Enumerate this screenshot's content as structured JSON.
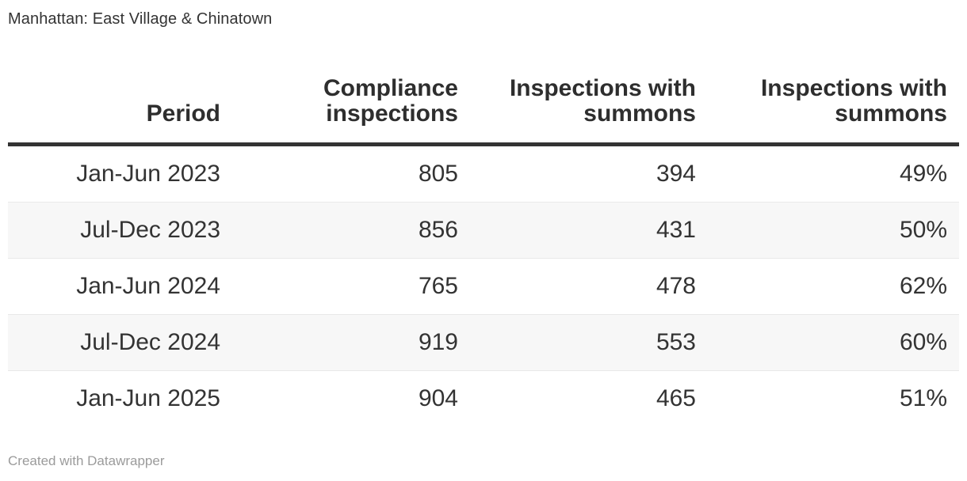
{
  "title": "Manhattan: East Village & Chinatown",
  "chart_data": {
    "type": "table",
    "title": "Manhattan: East Village & Chinatown",
    "columns": [
      "Period",
      "Compliance inspections",
      "Inspections with summons",
      "Inspections with summons"
    ],
    "rows": [
      [
        "Jan-Jun 2023",
        "805",
        "394",
        "49%"
      ],
      [
        "Jul-Dec 2023",
        "856",
        "431",
        "50%"
      ],
      [
        "Jan-Jun 2024",
        "765",
        "478",
        "62%"
      ],
      [
        "Jul-Dec 2024",
        "919",
        "553",
        "60%"
      ],
      [
        "Jan-Jun 2025",
        "904",
        "465",
        "51%"
      ]
    ],
    "layout_hints": {
      "text_alignment": "right",
      "striped_rows": "even rows shaded",
      "header_rule": "thick dark bar under header"
    }
  },
  "footer": {
    "credit": "Created with Datawrapper"
  },
  "colors": {
    "text": "#333333",
    "header_rule": "#333333",
    "row_stripe": "#f7f7f7",
    "row_border": "#e9e9e9",
    "footer_text": "#9b9b9b",
    "background": "#ffffff"
  }
}
